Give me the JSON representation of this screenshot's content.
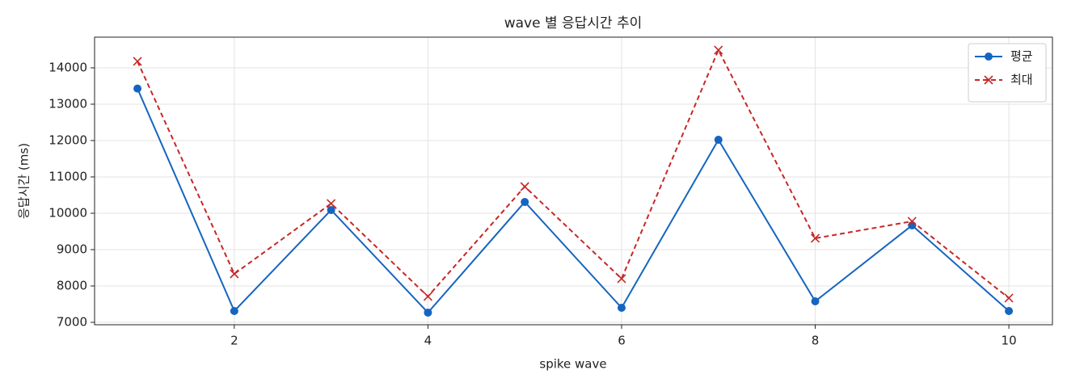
{
  "chart_data": {
    "type": "line",
    "title": "wave 별 응답시간 추이",
    "x_label": "spike wave",
    "y_label": "응답시간 (ms)",
    "x": [
      1,
      2,
      3,
      4,
      5,
      6,
      7,
      8,
      9,
      10
    ],
    "series": [
      {
        "name": "평균",
        "color": "#1565c0",
        "marker": "o",
        "linestyle": "solid",
        "values": [
          13430,
          7311,
          10089,
          7267,
          10311,
          7400,
          12022,
          7578,
          9667,
          7311
        ]
      },
      {
        "name": "최대",
        "color": "#c62828",
        "marker": "x",
        "linestyle": "dashed",
        "values": [
          14178,
          8333,
          10267,
          7711,
          10733,
          8200,
          14489,
          9311,
          9778,
          7667
        ]
      }
    ],
    "xlim": [
      0.557,
      10.45
    ],
    "ylim": [
      6933,
      14844
    ],
    "xticks": [
      2,
      4,
      6,
      8,
      10
    ],
    "yticks": [
      7000,
      8000,
      9000,
      10000,
      11000,
      12000,
      13000,
      14000
    ],
    "grid": true,
    "legend": "upper right"
  }
}
